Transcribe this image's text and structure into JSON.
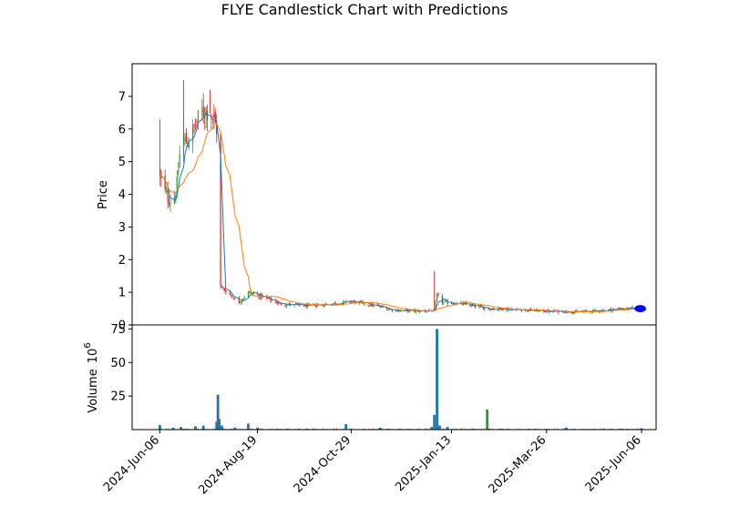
{
  "chart_data": [
    {
      "type": "candlestick",
      "title": "FLYE Candlestick Chart with Predictions",
      "ylabel": "Price",
      "ylim": [
        0,
        8
      ],
      "yticks": [
        0,
        1,
        2,
        3,
        4,
        5,
        6,
        7
      ],
      "colors": {
        "up": "#2ca02c",
        "down": "#d62728",
        "ma_fast": "#1f77b4",
        "ma_slow": "#ff7f0e",
        "prediction": "#0000ff"
      },
      "xlim": [
        "2024-05-16",
        "2025-06-17"
      ],
      "x_ticks": [
        "2024-Jun-06",
        "2024-Aug-19",
        "2024-Oct-29",
        "2025-Jan-13",
        "2025-Mar-26",
        "2025-Jun-06"
      ],
      "x_tick_dates": [
        "2024-06-06",
        "2024-08-19",
        "2024-10-29",
        "2025-01-13",
        "2025-03-26",
        "2025-06-06"
      ],
      "key_points": [
        {
          "date": "2024-06-06",
          "close": 4.6
        },
        {
          "date": "2024-06-08",
          "close": 4.2
        },
        {
          "date": "2024-06-12",
          "close": 3.9
        },
        {
          "date": "2024-06-16",
          "close": 3.75
        },
        {
          "date": "2024-06-19",
          "close": 4.3
        },
        {
          "date": "2024-06-22",
          "close": 5.7
        },
        {
          "date": "2024-06-26",
          "close": 5.6
        },
        {
          "date": "2024-07-01",
          "close": 5.9
        },
        {
          "date": "2024-07-06",
          "close": 6.4
        },
        {
          "date": "2024-07-11",
          "close": 6.6
        },
        {
          "date": "2024-07-16",
          "close": 6.4
        },
        {
          "date": "2024-07-19",
          "close": 6.0
        },
        {
          "date": "2024-07-21",
          "close": 1.2
        },
        {
          "date": "2024-07-27",
          "close": 1.0
        },
        {
          "date": "2024-08-05",
          "close": 0.7
        },
        {
          "date": "2024-08-12",
          "close": 1.0
        },
        {
          "date": "2024-08-20",
          "close": 0.9
        },
        {
          "date": "2024-09-05",
          "close": 0.65
        },
        {
          "date": "2024-09-25",
          "close": 0.58
        },
        {
          "date": "2024-10-15",
          "close": 0.65
        },
        {
          "date": "2024-10-29",
          "close": 0.72
        },
        {
          "date": "2024-11-15",
          "close": 0.6
        },
        {
          "date": "2024-12-01",
          "close": 0.45
        },
        {
          "date": "2024-12-20",
          "close": 0.42
        },
        {
          "date": "2024-12-31",
          "close": 0.45
        },
        {
          "date": "2025-01-02",
          "close": 0.9
        },
        {
          "date": "2025-01-06",
          "close": 0.7
        },
        {
          "date": "2025-01-20",
          "close": 0.65
        },
        {
          "date": "2025-02-10",
          "close": 0.5
        },
        {
          "date": "2025-03-01",
          "close": 0.48
        },
        {
          "date": "2025-03-26",
          "close": 0.42
        },
        {
          "date": "2025-04-20",
          "close": 0.4
        },
        {
          "date": "2025-05-10",
          "close": 0.45
        },
        {
          "date": "2025-05-20",
          "close": 0.5
        },
        {
          "date": "2025-06-05",
          "close": 0.5
        }
      ],
      "price_spikes": [
        {
          "date": "2024-06-06",
          "high": 6.3
        },
        {
          "date": "2024-06-24",
          "high": 7.5
        },
        {
          "date": "2024-07-14",
          "high": 7.2
        },
        {
          "date": "2024-12-31",
          "high": 1.65
        }
      ],
      "prediction": {
        "start": "2025-06-02",
        "end": "2025-06-08",
        "low": 0.4,
        "high": 0.62,
        "center": 0.5
      }
    },
    {
      "type": "bar",
      "ylabel": "Volume",
      "yscale_label": "10",
      "yscale_exponent": "6",
      "ylim": [
        0,
        78
      ],
      "yticks": [
        25,
        50,
        75
      ],
      "colors": {
        "volume": "#1f77b4",
        "overlay": "#d62728",
        "highlight": "#2ca02c"
      },
      "bars": [
        {
          "date": "2024-06-06",
          "volume": 3.5
        },
        {
          "date": "2024-06-16",
          "volume": 1.5
        },
        {
          "date": "2024-06-22",
          "volume": 2.0
        },
        {
          "date": "2024-07-03",
          "volume": 2.5
        },
        {
          "date": "2024-07-09",
          "volume": 3.0
        },
        {
          "date": "2024-07-19",
          "volume": 6.0
        },
        {
          "date": "2024-07-20",
          "volume": 26.0
        },
        {
          "date": "2024-07-21",
          "volume": 8.0
        },
        {
          "date": "2024-07-23",
          "volume": 3.0
        },
        {
          "date": "2024-08-02",
          "volume": 1.5
        },
        {
          "date": "2024-08-12",
          "volume": 4.5
        },
        {
          "date": "2024-08-19",
          "volume": 1.5
        },
        {
          "date": "2024-10-25",
          "volume": 4.0
        },
        {
          "date": "2024-11-20",
          "volume": 1.5
        },
        {
          "date": "2024-12-29",
          "volume": 2.0
        },
        {
          "date": "2024-12-31",
          "volume": 11.0
        },
        {
          "date": "2025-01-02",
          "volume": 75.0
        },
        {
          "date": "2025-01-04",
          "volume": 3.0
        },
        {
          "date": "2025-01-10",
          "volume": 2.0
        },
        {
          "date": "2025-02-09",
          "volume": 15.0
        },
        {
          "date": "2025-04-10",
          "volume": 1.5
        },
        {
          "date": "2025-06-06",
          "volume": 1.0
        }
      ]
    }
  ]
}
